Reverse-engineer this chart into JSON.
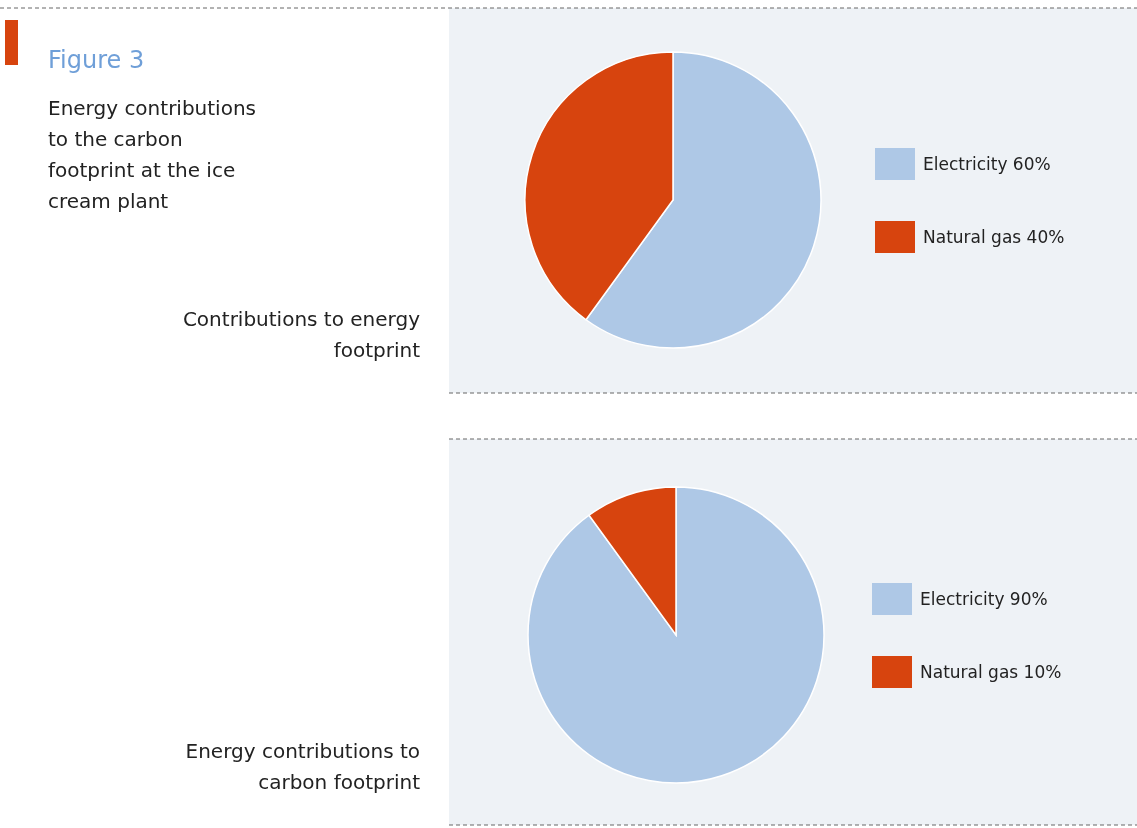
{
  "chart_data": [
    {
      "type": "pie",
      "title": "Contributions to energy footprint",
      "annotations": [
        "Figure 3",
        "Energy contributions to the carbon footprint at the ice cream plant"
      ],
      "categories": [
        "Electricity 60%",
        "Natural gas 40%"
      ],
      "values": [
        60,
        40
      ],
      "colors": [
        "#aec8e6",
        "#d7440e"
      ],
      "legend": "right"
    },
    {
      "type": "pie",
      "title": "Energy contributions to carbon footprint",
      "categories": [
        "Electricity 90%",
        "Natural gas 10%"
      ],
      "values": [
        90,
        10
      ],
      "colors": [
        "#aec8e6",
        "#d7440e"
      ],
      "legend": "right"
    }
  ]
}
